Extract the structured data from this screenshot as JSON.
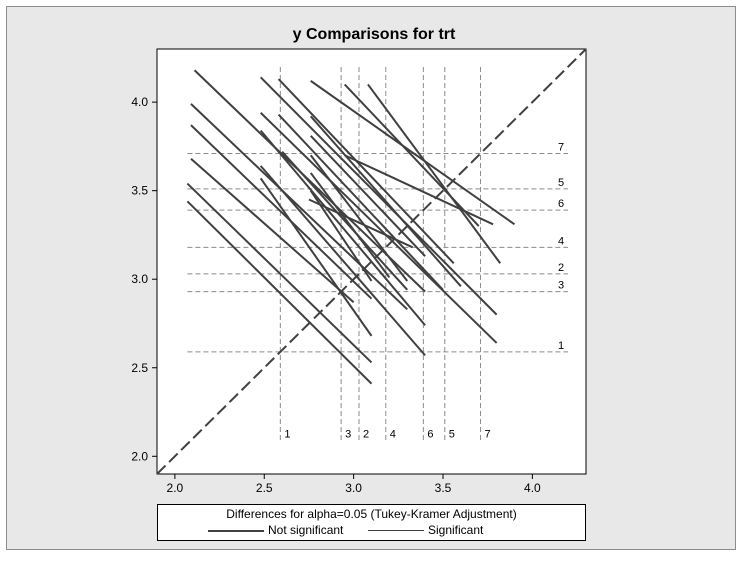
{
  "chart_data": {
    "type": "line",
    "title": "y Comparisons for trt",
    "xlim": [
      1.9,
      4.3
    ],
    "ylim": [
      1.9,
      4.3
    ],
    "x_ticks": [
      "2.0",
      "2.5",
      "3.0",
      "3.5",
      "4.0"
    ],
    "y_ticks": [
      "2.0",
      "2.5",
      "3.0",
      "3.5",
      "4.0"
    ],
    "grid": false,
    "diagonal": {
      "from": [
        1.9,
        1.9
      ],
      "to": [
        4.3,
        4.3
      ],
      "style": "dashed"
    },
    "means": [
      {
        "label": "1",
        "value": 2.59
      },
      {
        "label": "2",
        "value": 3.03
      },
      {
        "label": "3",
        "value": 2.93
      },
      {
        "label": "4",
        "value": 3.18
      },
      {
        "label": "5",
        "value": 3.51
      },
      {
        "label": "6",
        "value": 3.39
      },
      {
        "label": "7",
        "value": 3.71
      }
    ],
    "segments": [
      {
        "x": [
          2.11,
          3.4
        ],
        "y": [
          4.18,
          2.93
        ],
        "significant": false
      },
      {
        "x": [
          2.09,
          3.3
        ],
        "y": [
          3.99,
          2.83
        ],
        "significant": false
      },
      {
        "x": [
          2.09,
          3.1
        ],
        "y": [
          3.87,
          2.89
        ],
        "significant": false
      },
      {
        "x": [
          2.09,
          3.0
        ],
        "y": [
          3.68,
          2.87
        ],
        "significant": false
      },
      {
        "x": [
          2.07,
          3.1
        ],
        "y": [
          3.54,
          2.53
        ],
        "significant": false
      },
      {
        "x": [
          2.07,
          3.1
        ],
        "y": [
          3.44,
          2.41
        ],
        "significant": false
      },
      {
        "x": [
          2.48,
          3.8
        ],
        "y": [
          4.14,
          2.8
        ],
        "significant": false
      },
      {
        "x": [
          2.48,
          3.8
        ],
        "y": [
          3.94,
          2.64
        ],
        "significant": false
      },
      {
        "x": [
          2.48,
          3.4
        ],
        "y": [
          3.84,
          2.74
        ],
        "significant": false
      },
      {
        "x": [
          2.48,
          3.4
        ],
        "y": [
          3.64,
          2.57
        ],
        "significant": false
      },
      {
        "x": [
          2.58,
          3.56
        ],
        "y": [
          4.13,
          3.09
        ],
        "significant": false
      },
      {
        "x": [
          2.58,
          3.5
        ],
        "y": [
          3.93,
          2.94
        ],
        "significant": false
      },
      {
        "x": [
          2.6,
          3.3
        ],
        "y": [
          3.72,
          2.94
        ],
        "significant": false
      },
      {
        "x": [
          2.76,
          3.9
        ],
        "y": [
          4.12,
          3.31
        ],
        "significant": false
      },
      {
        "x": [
          2.76,
          3.6
        ],
        "y": [
          3.92,
          2.96
        ],
        "significant": false
      },
      {
        "x": [
          2.76,
          3.4
        ],
        "y": [
          3.81,
          3.13
        ],
        "significant": false
      },
      {
        "x": [
          2.76,
          3.3
        ],
        "y": [
          3.7,
          2.99
        ],
        "significant": false
      },
      {
        "x": [
          2.76,
          3.2
        ],
        "y": [
          3.6,
          3.01
        ],
        "significant": false
      },
      {
        "x": [
          2.76,
          3.1
        ],
        "y": [
          3.5,
          2.99
        ],
        "significant": false
      },
      {
        "x": [
          2.95,
          3.7
        ],
        "y": [
          4.1,
          3.3
        ],
        "significant": false
      },
      {
        "x": [
          3.08,
          3.82
        ],
        "y": [
          4.1,
          3.09
        ],
        "significant": false
      },
      {
        "x": [
          2.95,
          3.78
        ],
        "y": [
          3.7,
          3.31
        ],
        "significant": false
      },
      {
        "x": [
          2.75,
          3.33
        ],
        "y": [
          3.45,
          3.18
        ],
        "significant": false
      },
      {
        "x": [
          2.48,
          3.1
        ],
        "y": [
          3.57,
          2.68
        ],
        "significant": false
      }
    ],
    "legend": {
      "title": "Differences for alpha=0.05 (Tukey-Kramer Adjustment)",
      "position": "bottom",
      "items": [
        {
          "label": "Not significant",
          "color": "#404040"
        },
        {
          "label": "Significant",
          "color": "#404040"
        }
      ]
    },
    "colors": {
      "frame": "#e8e8e8",
      "plot_bg": "#ffffff",
      "segment": "#404040",
      "reference": "#8c8c8c",
      "diagonal": "#404040"
    }
  }
}
